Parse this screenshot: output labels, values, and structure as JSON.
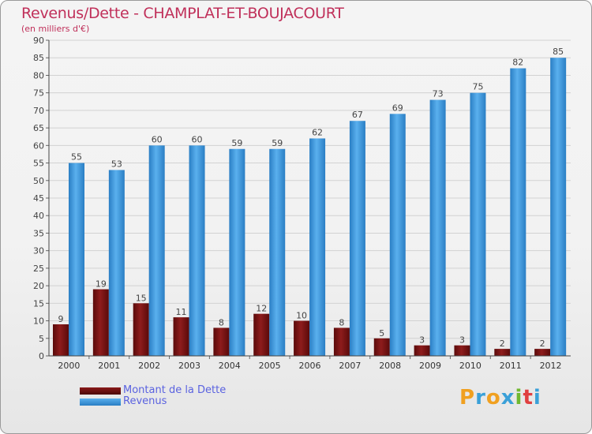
{
  "header": {
    "title": "Revenus/Dette - CHAMPLAT-ET-BOUJACOURT",
    "subtitle": "(en milliers d'€)"
  },
  "chart_data": {
    "type": "bar",
    "title": "Revenus/Dette - CHAMPLAT-ET-BOUJACOURT",
    "subtitle": "(en milliers d'€)",
    "categories": [
      "2000",
      "2001",
      "2002",
      "2003",
      "2004",
      "2005",
      "2006",
      "2007",
      "2008",
      "2009",
      "2010",
      "2011",
      "2012"
    ],
    "series": [
      {
        "name": "Montant de la Dette",
        "color": "#7a1414",
        "values": [
          9,
          19,
          15,
          11,
          8,
          12,
          10,
          8,
          5,
          3,
          3,
          2,
          2
        ]
      },
      {
        "name": "Revenus",
        "color": "#3c98dc",
        "values": [
          55,
          53,
          60,
          60,
          59,
          59,
          62,
          67,
          69,
          73,
          75,
          82,
          85
        ]
      }
    ],
    "ylim": [
      0,
      90
    ],
    "yticks": [
      0,
      5,
      10,
      15,
      20,
      25,
      30,
      35,
      40,
      45,
      50,
      55,
      60,
      65,
      70,
      75,
      80,
      85,
      90
    ],
    "grid": true,
    "legend_position": "bottom-left",
    "data_labels": true
  },
  "legend": {
    "items": [
      {
        "label": "Montant de la Dette",
        "color": "#6a0f0f"
      },
      {
        "label": "Revenus",
        "color": "#3c98dc"
      }
    ]
  },
  "logo": {
    "letters": [
      "P",
      "r",
      "o",
      "x",
      "i",
      "t",
      "i"
    ],
    "colors": [
      "#f0a020",
      "#3aa0d8",
      "#f0a020",
      "#3aa0d8",
      "#70b830",
      "#e04040",
      "#3aa0d8"
    ]
  }
}
